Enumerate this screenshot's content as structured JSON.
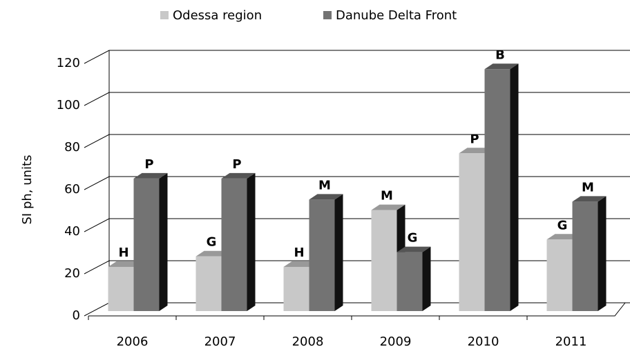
{
  "chart_data": {
    "type": "bar3d",
    "y_label": "SI ph, units",
    "categories": [
      "2006",
      "2007",
      "2008",
      "2009",
      "2010",
      "2011"
    ],
    "series": [
      {
        "name": "Odessa region",
        "color": "#c8c8c8",
        "values": [
          21,
          26,
          21,
          48,
          75,
          34
        ],
        "annotations": [
          "H",
          "G",
          "H",
          "M",
          "P",
          "G"
        ]
      },
      {
        "name": "Danube Delta Front",
        "color": "#737373",
        "values": [
          63,
          63,
          53,
          28,
          115,
          52
        ],
        "annotations": [
          "P",
          "P",
          "M",
          "G",
          "B",
          "M"
        ]
      }
    ],
    "ylim": [
      0,
      120
    ],
    "yticks": [
      0,
      20,
      40,
      60,
      80,
      100,
      120
    ],
    "grid": true,
    "legend": "top"
  }
}
